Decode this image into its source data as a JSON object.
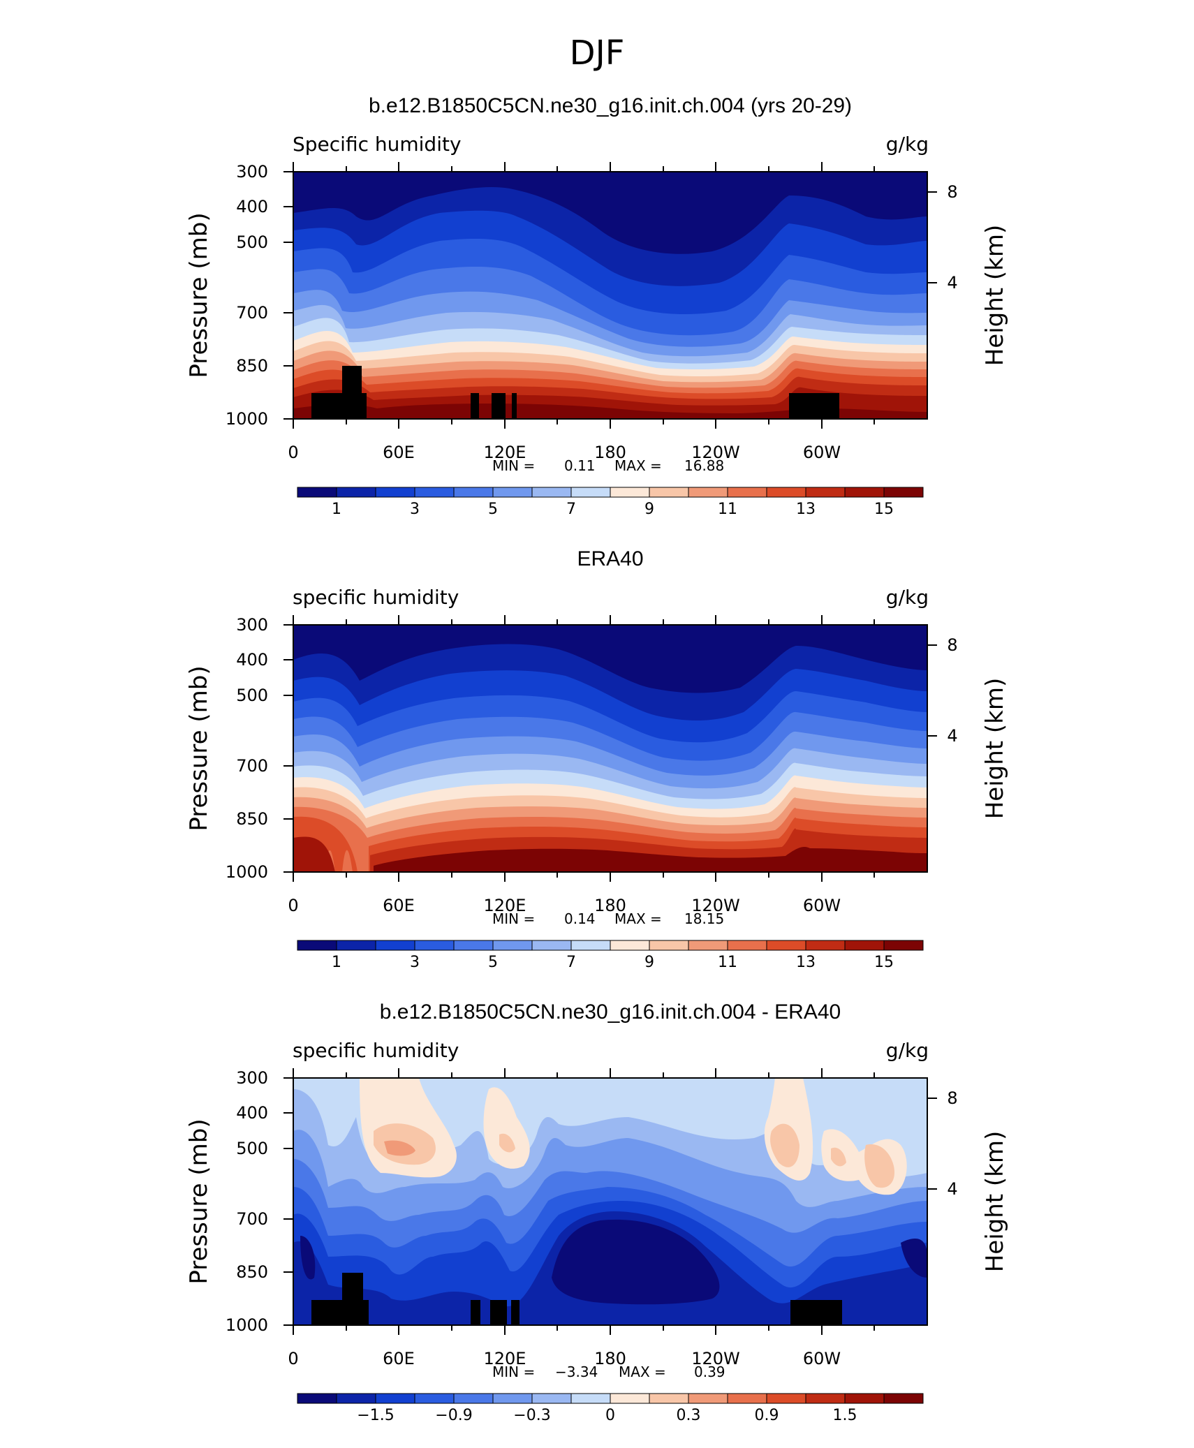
{
  "figure": {
    "title": "DJF"
  },
  "chart_data": [
    {
      "type": "heatmap",
      "panel_title": "b.e12.B1850C5CN.ne30_g16.init.ch.004 (yrs 20-29)",
      "left_label": "Specific humidity",
      "right_label": "g/kg",
      "ylabel": "Pressure (mb)",
      "y2label": "Height (km)",
      "y_ticks": [
        "300",
        "400",
        "500",
        "700",
        "850",
        "1000"
      ],
      "y2_ticks": [
        "8",
        "4"
      ],
      "x_ticks": [
        "0",
        "60E",
        "120E",
        "180",
        "120W",
        "60W"
      ],
      "min_label": "MIN =",
      "min_value": "0.11",
      "max_label": "MAX =",
      "max_value": "16.88",
      "colorbar_labels": [
        "1",
        "3",
        "5",
        "7",
        "9",
        "11",
        "13",
        "15"
      ],
      "colorbar_colors": [
        "#0a0a78",
        "#0c24a8",
        "#1240d0",
        "#2a5ce0",
        "#4a78e8",
        "#7098ee",
        "#9ab8f2",
        "#c6dcf8",
        "#fce8d8",
        "#f8c6a8",
        "#f09a78",
        "#e8704c",
        "#dc4c28",
        "#c02c14",
        "#a01408",
        "#7c0404"
      ],
      "land_mask": true,
      "notes": "Specific humidity decreasing with height; moist near surface"
    },
    {
      "type": "heatmap",
      "panel_title": "ERA40",
      "left_label": "specific humidity",
      "right_label": "g/kg",
      "ylabel": "Pressure (mb)",
      "y2label": "Height (km)",
      "y_ticks": [
        "300",
        "400",
        "500",
        "700",
        "850",
        "1000"
      ],
      "y2_ticks": [
        "8",
        "4"
      ],
      "x_ticks": [
        "0",
        "60E",
        "120E",
        "180",
        "120W",
        "60W"
      ],
      "min_label": "MIN =",
      "min_value": "0.14",
      "max_label": "MAX =",
      "max_value": "18.15",
      "colorbar_labels": [
        "1",
        "3",
        "5",
        "7",
        "9",
        "11",
        "13",
        "15"
      ],
      "colorbar_colors": [
        "#0a0a78",
        "#0c24a8",
        "#1240d0",
        "#2a5ce0",
        "#4a78e8",
        "#7098ee",
        "#9ab8f2",
        "#c6dcf8",
        "#fce8d8",
        "#f8c6a8",
        "#f09a78",
        "#e8704c",
        "#dc4c28",
        "#c02c14",
        "#a01408",
        "#7c0404"
      ],
      "land_mask": false
    },
    {
      "type": "heatmap",
      "panel_title": "b.e12.B1850C5CN.ne30_g16.init.ch.004 - ERA40",
      "left_label": "specific humidity",
      "right_label": "g/kg",
      "ylabel": "Pressure (mb)",
      "y2label": "Height (km)",
      "y_ticks": [
        "300",
        "400",
        "500",
        "700",
        "850",
        "1000"
      ],
      "y2_ticks": [
        "8",
        "4"
      ],
      "x_ticks": [
        "0",
        "60E",
        "120E",
        "180",
        "120W",
        "60W"
      ],
      "min_label": "MIN =",
      "min_value": "−3.34",
      "max_label": "MAX =",
      "max_value": "0.39",
      "colorbar_labels": [
        "−1.5",
        "−0.9",
        "−0.3",
        "0",
        "0.3",
        "0.9",
        "1.5"
      ],
      "colorbar_colors": [
        "#0a0a78",
        "#0c24a8",
        "#1240d0",
        "#2a5ce0",
        "#4a78e8",
        "#7098ee",
        "#9ab8f2",
        "#c6dcf8",
        "#fce8d8",
        "#f8c6a8",
        "#f09a78",
        "#e8704c",
        "#dc4c28",
        "#c02c14",
        "#a01408",
        "#7c0404"
      ],
      "land_mask": true
    }
  ]
}
